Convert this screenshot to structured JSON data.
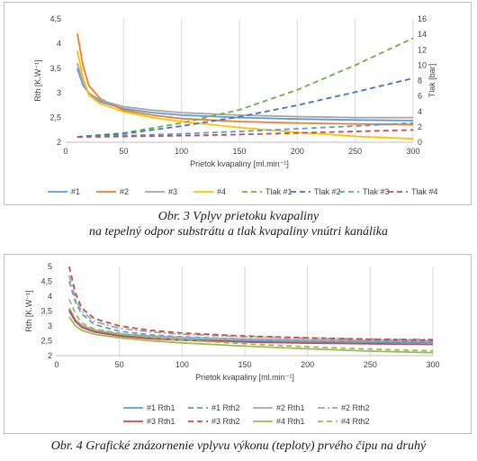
{
  "chart_data": [
    {
      "type": "line",
      "xlabel": "Prietok kvapaliny [ml.min⁻¹]",
      "ylabel": "Rth [K.W⁻¹]",
      "y2label": "Tlak [bar]",
      "xlim": [
        0,
        300
      ],
      "ylim": [
        2,
        4.5
      ],
      "y2lim": [
        0,
        16
      ],
      "x_ticks": [
        0,
        50,
        100,
        150,
        200,
        250,
        300
      ],
      "y_ticks": [
        "2",
        "2,5",
        "3",
        "3,5",
        "4",
        "4,5"
      ],
      "y2_ticks": [
        0,
        2,
        4,
        6,
        8,
        10,
        12,
        14,
        16
      ],
      "grid": "vertical",
      "legend": "bottom",
      "series": [
        {
          "name": "#1",
          "axis": "left",
          "dash": "solid",
          "color": "#5b9bd5",
          "x": [
            10,
            15,
            20,
            30,
            50,
            75,
            100,
            150,
            200,
            250,
            300
          ],
          "y": [
            3.5,
            3.15,
            3.0,
            2.82,
            2.68,
            2.6,
            2.55,
            2.5,
            2.47,
            2.45,
            2.44
          ]
        },
        {
          "name": "#2",
          "axis": "left",
          "dash": "solid",
          "color": "#ed7d31",
          "x": [
            10,
            15,
            20,
            30,
            50,
            75,
            100,
            150,
            200,
            250,
            300
          ],
          "y": [
            4.2,
            3.55,
            3.15,
            2.88,
            2.65,
            2.55,
            2.48,
            2.42,
            2.39,
            2.37,
            2.36
          ]
        },
        {
          "name": "#3",
          "axis": "left",
          "dash": "solid",
          "color": "#a5a5a5",
          "x": [
            10,
            15,
            20,
            30,
            50,
            75,
            100,
            150,
            200,
            250,
            300
          ],
          "y": [
            3.6,
            3.2,
            3.0,
            2.85,
            2.72,
            2.65,
            2.6,
            2.55,
            2.52,
            2.5,
            2.5
          ]
        },
        {
          "name": "#4",
          "axis": "left",
          "dash": "solid",
          "color": "#ffc000",
          "x": [
            10,
            15,
            20,
            30,
            50,
            75,
            100,
            150,
            200,
            250,
            300
          ],
          "y": [
            3.85,
            3.3,
            2.95,
            2.78,
            2.62,
            2.5,
            2.42,
            2.3,
            2.2,
            2.12,
            2.07
          ]
        },
        {
          "name": "Tlak #1",
          "axis": "right",
          "dash": "dashed",
          "color": "#70ad47",
          "x": [
            10,
            50,
            100,
            150,
            200,
            250,
            300
          ],
          "y": [
            0.7,
            1.2,
            2.5,
            4.2,
            6.8,
            10,
            13.5
          ]
        },
        {
          "name": "Tlak #2",
          "axis": "right",
          "dash": "dashed",
          "color": "#4472c4",
          "x": [
            10,
            50,
            100,
            150,
            200,
            250,
            300
          ],
          "y": [
            0.7,
            1.1,
            2.1,
            3.3,
            4.8,
            6.5,
            8.3
          ]
        },
        {
          "name": "Tlak #3",
          "axis": "right",
          "dash": "dashed",
          "color": "#5b9bd5",
          "x": [
            10,
            50,
            100,
            150,
            200,
            250,
            300
          ],
          "y": [
            0.7,
            0.85,
            1.1,
            1.4,
            1.75,
            2.1,
            2.5
          ]
        },
        {
          "name": "Tlak #4",
          "axis": "right",
          "dash": "dashed",
          "color": "#c0504d",
          "x": [
            10,
            50,
            100,
            150,
            200,
            250,
            300
          ],
          "y": [
            0.7,
            0.75,
            0.85,
            1.0,
            1.2,
            1.4,
            1.6
          ]
        }
      ]
    },
    {
      "type": "line",
      "xlabel": "Prietok kvapaliny [ml.min⁻¹]",
      "ylabel": "Rth [K.W⁻¹]",
      "xlim": [
        0,
        300
      ],
      "ylim": [
        2,
        5
      ],
      "x_ticks": [
        0,
        50,
        100,
        150,
        200,
        250,
        300
      ],
      "y_ticks": [
        "2",
        "2,5",
        "3",
        "3,5",
        "4",
        "4,5",
        "5"
      ],
      "grid": "vertical",
      "legend": "bottom",
      "series": [
        {
          "name": "#1 Rth1",
          "dash": "solid",
          "color": "#5b9bd5",
          "x": [
            10,
            15,
            20,
            30,
            50,
            75,
            100,
            150,
            200,
            250,
            300
          ],
          "y": [
            3.5,
            3.15,
            2.98,
            2.82,
            2.68,
            2.6,
            2.55,
            2.5,
            2.47,
            2.45,
            2.44
          ]
        },
        {
          "name": "#1 Rth2",
          "dash": "dashed",
          "color": "#5b9bd5",
          "x": [
            10,
            15,
            20,
            30,
            50,
            75,
            100,
            150,
            200,
            250,
            300
          ],
          "y": [
            4.5,
            3.8,
            3.4,
            3.05,
            2.82,
            2.7,
            2.63,
            2.56,
            2.52,
            2.5,
            2.49
          ]
        },
        {
          "name": "#2 Rth1",
          "dash": "solid",
          "color": "#a5a5a5",
          "x": [
            10,
            15,
            20,
            30,
            50,
            75,
            100,
            150,
            200,
            250,
            300
          ],
          "y": [
            3.6,
            3.2,
            3.02,
            2.86,
            2.73,
            2.66,
            2.61,
            2.56,
            2.53,
            2.51,
            2.5
          ]
        },
        {
          "name": "#2 Rth2",
          "dash": "dashdot",
          "color": "#a5a5a5",
          "x": [
            10,
            15,
            20,
            30,
            50,
            75,
            100,
            150,
            200,
            250,
            300
          ],
          "y": [
            4.7,
            3.9,
            3.5,
            3.15,
            2.92,
            2.8,
            2.72,
            2.64,
            2.59,
            2.56,
            2.55
          ]
        },
        {
          "name": "#3 Rth1",
          "dash": "solid",
          "color": "#c0504d",
          "x": [
            10,
            15,
            20,
            30,
            50,
            75,
            100,
            150,
            200,
            250,
            300
          ],
          "y": [
            3.55,
            3.15,
            2.95,
            2.8,
            2.66,
            2.57,
            2.52,
            2.46,
            2.42,
            2.4,
            2.38
          ]
        },
        {
          "name": "#3 Rth2",
          "dash": "dashed",
          "color": "#c0504d",
          "x": [
            10,
            15,
            20,
            30,
            50,
            75,
            100,
            150,
            200,
            250,
            300
          ],
          "y": [
            5.0,
            4.1,
            3.6,
            3.25,
            3.0,
            2.85,
            2.76,
            2.66,
            2.6,
            2.55,
            2.52
          ]
        },
        {
          "name": "#4 Rth1",
          "dash": "solid",
          "color": "#9bbb59",
          "x": [
            10,
            15,
            20,
            30,
            50,
            75,
            100,
            150,
            200,
            250,
            300
          ],
          "y": [
            3.3,
            3.0,
            2.85,
            2.72,
            2.6,
            2.5,
            2.43,
            2.32,
            2.23,
            2.15,
            2.1
          ]
        },
        {
          "name": "#4 Rth2",
          "dash": "dashed",
          "color": "#9bbb59",
          "x": [
            10,
            15,
            20,
            30,
            50,
            75,
            100,
            150,
            200,
            250,
            300
          ],
          "y": [
            3.9,
            3.4,
            3.1,
            2.9,
            2.75,
            2.62,
            2.52,
            2.4,
            2.3,
            2.22,
            2.16
          ]
        }
      ]
    }
  ],
  "captions": {
    "fig3_line1": "Obr. 3  Vplyv prietoku kvapaliny",
    "fig3_line2": "na tepelný odpor substrátu a tlak kvapaliny vnútri kanálika",
    "fig4": "Obr. 4  Grafické znázornenie vplyvu výkonu (teploty) prvého čipu na druhý"
  }
}
